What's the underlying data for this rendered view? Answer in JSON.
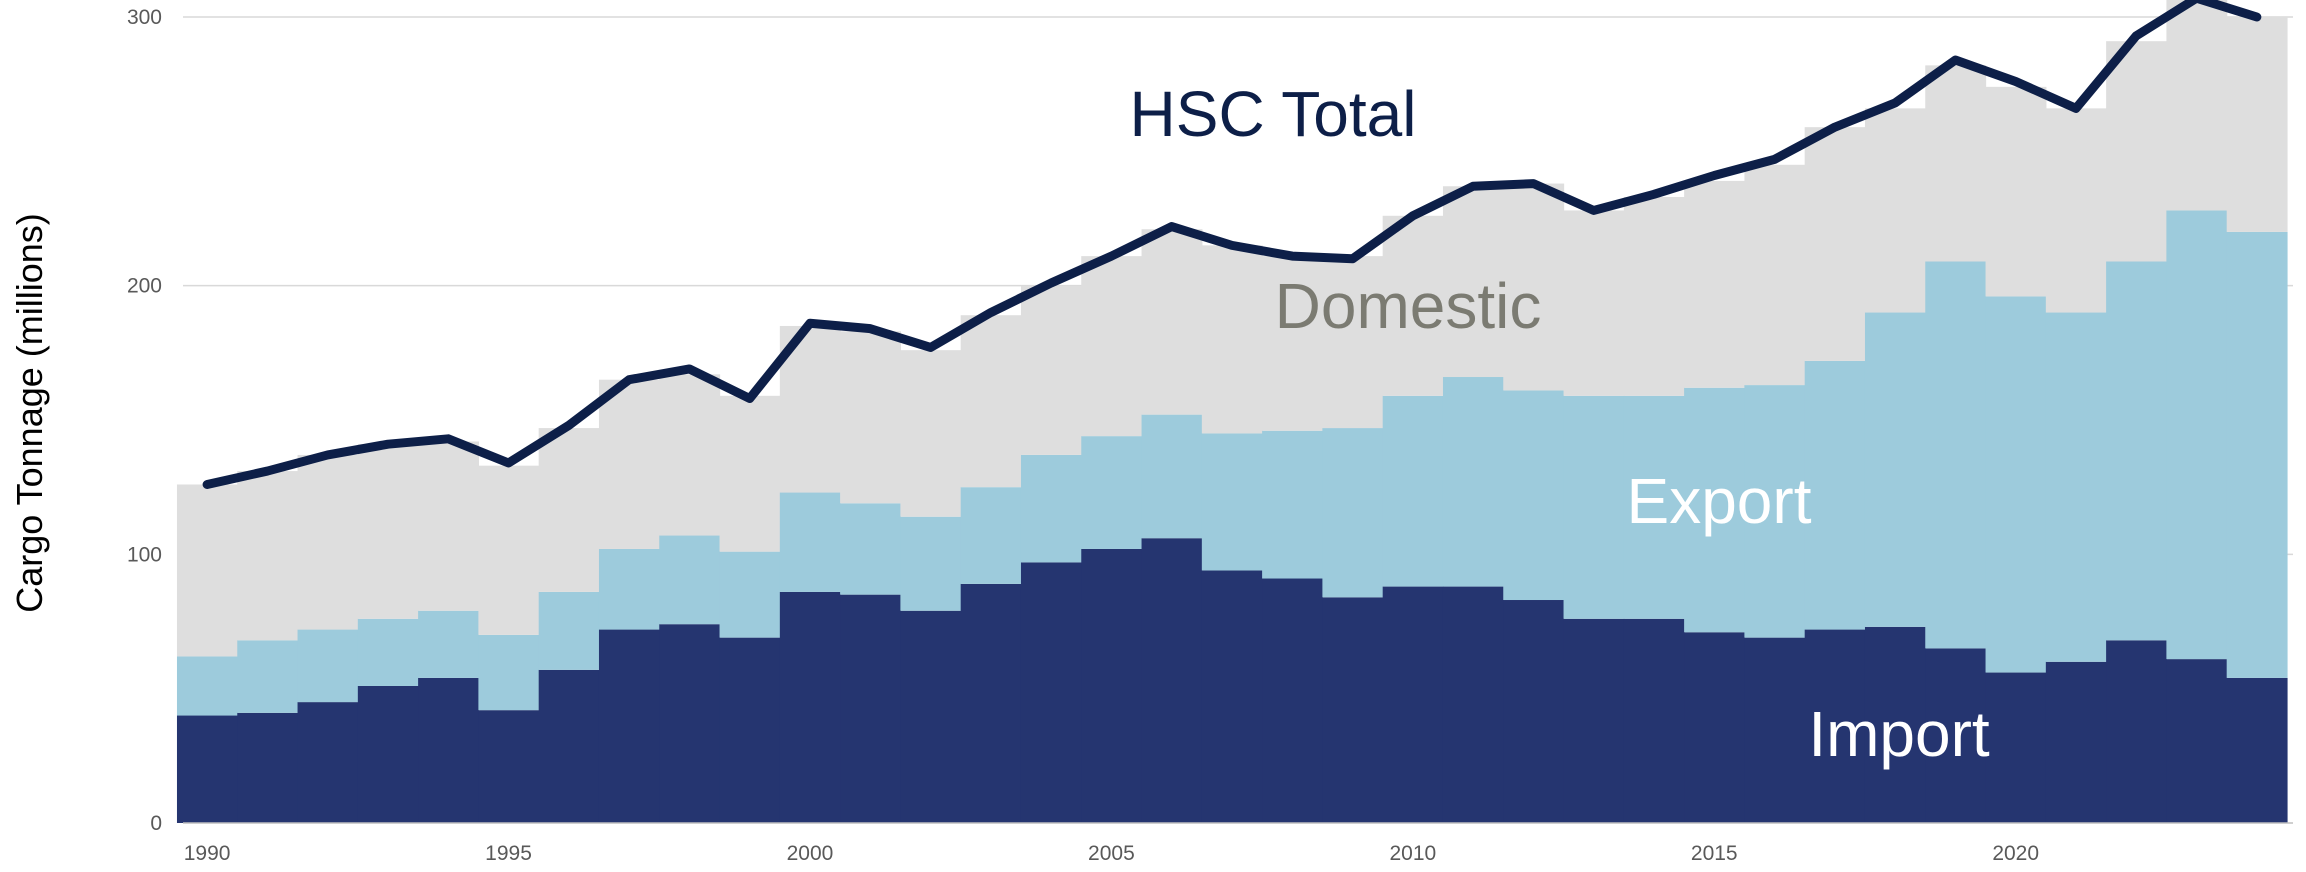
{
  "chart_data": {
    "type": "area",
    "title": "",
    "xlabel": "",
    "ylabel": "Cargo Tonnage (millions)",
    "xlim": [
      1989.6,
      2024.6
    ],
    "ylim": [
      0,
      300
    ],
    "grid": true,
    "x_ticks": [
      "1990",
      "1995",
      "2000",
      "2005",
      "2010",
      "2015",
      "2020"
    ],
    "y_ticks": [
      "0",
      "100",
      "200",
      "300"
    ],
    "x": [
      1990,
      1991,
      1992,
      1993,
      1994,
      1995,
      1996,
      1997,
      1998,
      1999,
      2000,
      2001,
      2002,
      2003,
      2004,
      2005,
      2006,
      2007,
      2008,
      2009,
      2010,
      2011,
      2012,
      2013,
      2014,
      2015,
      2016,
      2017,
      2018,
      2019,
      2020,
      2021,
      2022,
      2023,
      2024
    ],
    "series": [
      {
        "name": "Import",
        "color": "#253570",
        "values": [
          40,
          41,
          45,
          51,
          54,
          42,
          57,
          72,
          74,
          69,
          86,
          85,
          79,
          89,
          97,
          102,
          106,
          94,
          91,
          84,
          88,
          88,
          83,
          76,
          76,
          71,
          69,
          72,
          73,
          65,
          56,
          60,
          68,
          61,
          54
        ]
      },
      {
        "name": "Export",
        "color": "#9dcbdc",
        "values": [
          22,
          27,
          27,
          25,
          25,
          28,
          29,
          30,
          33,
          32,
          37,
          34,
          35,
          36,
          40,
          42,
          46,
          51,
          55,
          63,
          71,
          78,
          78,
          83,
          83,
          91,
          94,
          100,
          117,
          144,
          140,
          130,
          141,
          167,
          166
        ]
      },
      {
        "name": "Domestic",
        "color": "#dedede",
        "values": [
          64,
          63,
          65,
          65,
          63,
          63,
          61,
          63,
          60,
          58,
          62,
          64,
          62,
          64,
          63,
          67,
          69,
          70,
          65,
          64,
          67,
          71,
          77,
          69,
          74,
          77,
          82,
          87,
          76,
          73,
          78,
          76,
          82,
          80,
          80
        ]
      },
      {
        "name": "HSC Total",
        "color": "#0d1f48",
        "values": [
          126,
          131,
          137,
          141,
          143,
          134,
          148,
          165,
          169,
          158,
          186,
          184,
          177,
          190,
          201,
          211,
          222,
          215,
          211,
          210,
          226,
          237,
          238,
          228,
          234,
          241,
          247,
          259,
          268,
          284,
          276,
          266,
          293,
          307,
          300
        ]
      }
    ]
  }
}
